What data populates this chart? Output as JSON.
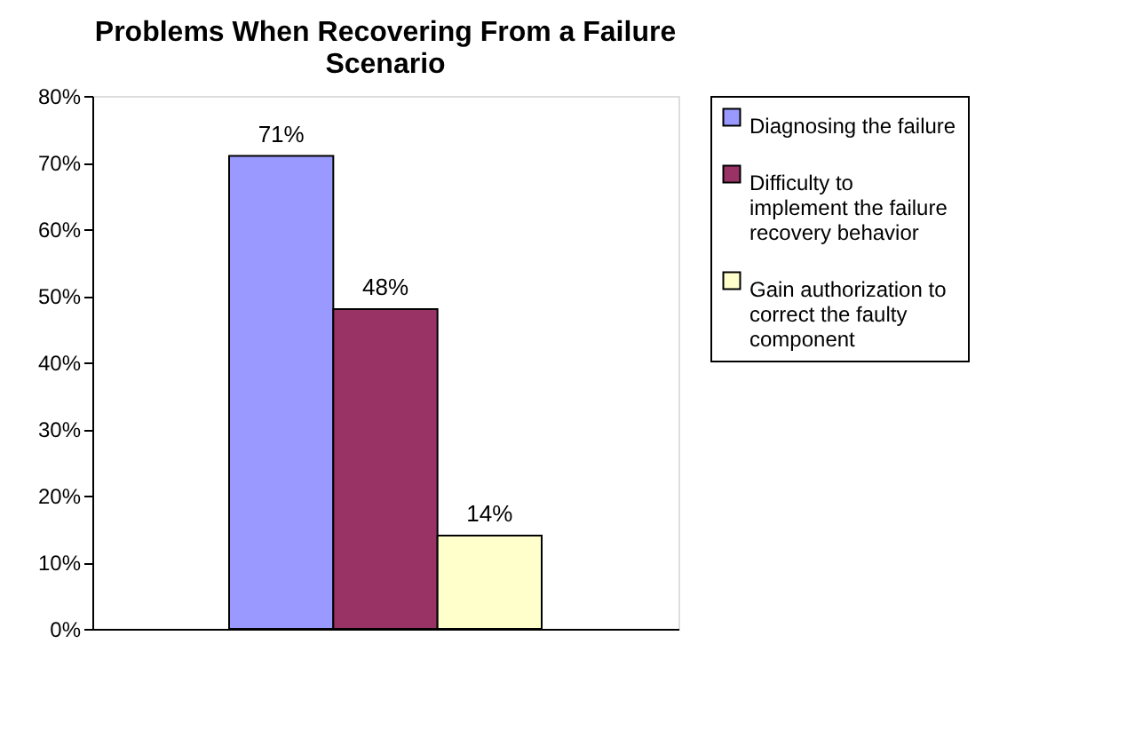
{
  "chart_data": {
    "type": "bar",
    "title": "Problems When Recovering From a Failure Scenario",
    "categories": [
      null
    ],
    "series": [
      {
        "name": "Diagnosing the failure",
        "color": "#9999ff",
        "values": [
          71
        ],
        "value_labels": [
          "71%"
        ]
      },
      {
        "name": "Difficulty to implement the failure recovery behavior",
        "color": "#993366",
        "values": [
          48
        ],
        "value_labels": [
          "48%"
        ]
      },
      {
        "name": "Gain authorization to correct the faulty component",
        "color": "#ffffcc",
        "values": [
          14
        ],
        "value_labels": [
          "14%"
        ]
      }
    ],
    "ylim": [
      0,
      80
    ],
    "yticks": [
      {
        "value": 0,
        "label": "0%"
      },
      {
        "value": 10,
        "label": "10%"
      },
      {
        "value": 20,
        "label": "20%"
      },
      {
        "value": 30,
        "label": "30%"
      },
      {
        "value": 40,
        "label": "40%"
      },
      {
        "value": 50,
        "label": "50%"
      },
      {
        "value": 60,
        "label": "60%"
      },
      {
        "value": 70,
        "label": "70%"
      },
      {
        "value": 80,
        "label": "80%"
      }
    ],
    "grid": false,
    "legend": "right"
  }
}
